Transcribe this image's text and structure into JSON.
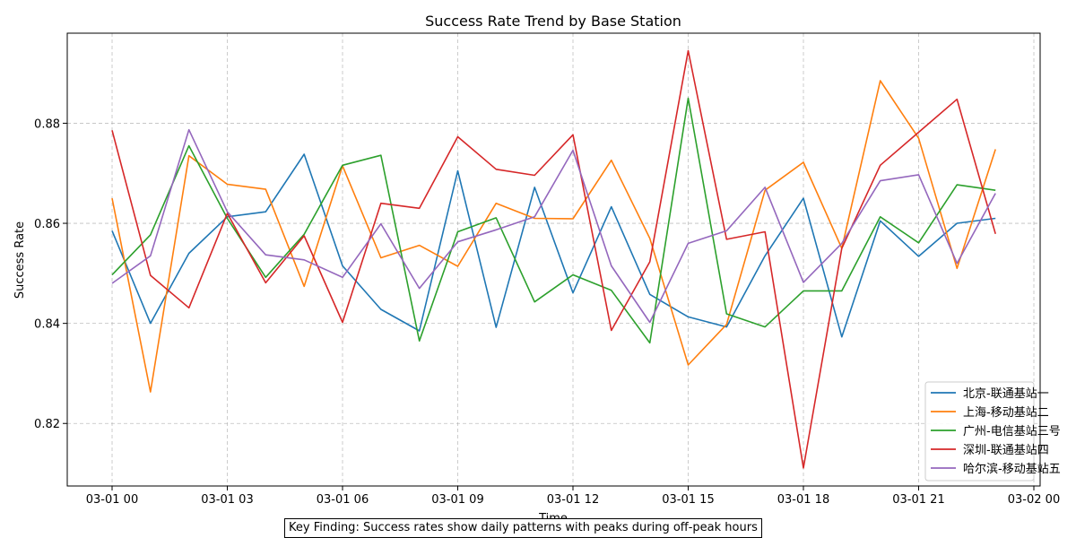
{
  "chart_data": {
    "type": "line",
    "title": "Success Rate Trend by Base Station",
    "xlabel": "Time",
    "ylabel": "Success Rate",
    "x": [
      "03-01 00:00",
      "03-01 01:00",
      "03-01 02:00",
      "03-01 03:00",
      "03-01 04:00",
      "03-01 05:00",
      "03-01 06:00",
      "03-01 07:00",
      "03-01 08:00",
      "03-01 09:00",
      "03-01 10:00",
      "03-01 11:00",
      "03-01 12:00",
      "03-01 13:00",
      "03-01 14:00",
      "03-01 15:00",
      "03-01 16:00",
      "03-01 17:00",
      "03-01 18:00",
      "03-01 19:00",
      "03-01 20:00",
      "03-01 21:00",
      "03-01 22:00",
      "03-01 23:00"
    ],
    "x_ticks": [
      "03-01 00",
      "03-01 03",
      "03-01 06",
      "03-01 09",
      "03-01 12",
      "03-01 15",
      "03-01 18",
      "03-01 21",
      "03-02 00"
    ],
    "y_ticks": [
      "0.82",
      "0.84",
      "0.86",
      "0.88"
    ],
    "xlim": [
      "2024-02-29 23:00 (approx -1.17h)",
      "03-02 00:42 (approx)"
    ],
    "ylim": [
      0.8075,
      0.898
    ],
    "grid": true,
    "legend_position": "lower-right",
    "series": [
      {
        "name": "北京-联通基站一",
        "color": "#1f77b4",
        "values": [
          0.8585,
          0.84,
          0.854,
          0.8613,
          0.8623,
          0.8738,
          0.8515,
          0.8428,
          0.8385,
          0.8705,
          0.8392,
          0.8672,
          0.8461,
          0.8633,
          0.8458,
          0.8413,
          0.8393,
          0.8535,
          0.865,
          0.8373,
          0.8605,
          0.8534,
          0.86,
          0.861
        ]
      },
      {
        "name": "上海-移动基站二",
        "color": "#ff7f0e",
        "values": [
          0.865,
          0.8263,
          0.8735,
          0.8678,
          0.8668,
          0.8474,
          0.8715,
          0.8531,
          0.8556,
          0.8514,
          0.864,
          0.861,
          0.8609,
          0.8726,
          0.857,
          0.8317,
          0.8398,
          0.8666,
          0.8722,
          0.855,
          0.8885,
          0.877,
          0.851,
          0.8748
        ]
      },
      {
        "name": "广州-电信基站三号",
        "color": "#2ca02c",
        "values": [
          0.8497,
          0.8577,
          0.8755,
          0.861,
          0.8492,
          0.8578,
          0.8716,
          0.8736,
          0.8365,
          0.8583,
          0.8611,
          0.8443,
          0.8497,
          0.8466,
          0.8361,
          0.885,
          0.8419,
          0.8393,
          0.8465,
          0.8465,
          0.8613,
          0.8561,
          0.8677,
          0.8666
        ]
      },
      {
        "name": "深圳-联通基站四",
        "color": "#d62728",
        "values": [
          0.8786,
          0.8496,
          0.8431,
          0.862,
          0.8481,
          0.8575,
          0.8402,
          0.864,
          0.863,
          0.8773,
          0.8708,
          0.8696,
          0.8777,
          0.8386,
          0.8523,
          0.8945,
          0.8568,
          0.8583,
          0.8111,
          0.855,
          0.8716,
          0.8782,
          0.8848,
          0.8579
        ]
      },
      {
        "name": "哈尔滨-移动基站五",
        "color": "#9467bd",
        "values": [
          0.848,
          0.8535,
          0.8787,
          0.8623,
          0.8537,
          0.8527,
          0.8492,
          0.8599,
          0.847,
          0.8563,
          0.8587,
          0.8613,
          0.8746,
          0.8515,
          0.8402,
          0.856,
          0.8585,
          0.8672,
          0.8482,
          0.856,
          0.8685,
          0.8697,
          0.852,
          0.866
        ]
      }
    ]
  },
  "note": "Key Finding: Success rates show daily patterns with peaks during off-peak hours"
}
